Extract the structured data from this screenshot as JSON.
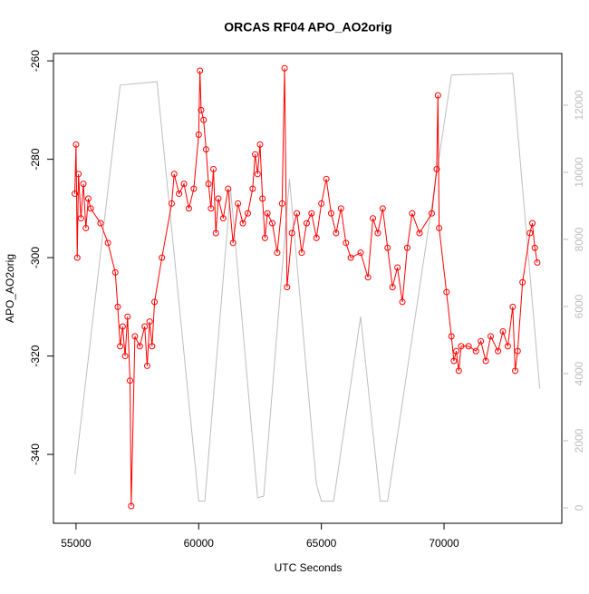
{
  "chart_data": {
    "type": "line",
    "title": "ORCAS RF04 APO_AO2orig",
    "xlabel": "UTC Seconds",
    "ylabel": "APO_AO2orig",
    "xlim": [
      54080,
      74800
    ],
    "xticks": [
      55000,
      60000,
      65000,
      70000
    ],
    "ylim": [
      -354,
      -258.5
    ],
    "yticks": [
      -340,
      -320,
      -300,
      -280,
      -260
    ],
    "y2lim": [
      -460,
      13540
    ],
    "y2ticks": [
      0,
      2000,
      4000,
      6000,
      8000,
      10000,
      12000
    ],
    "series": [
      {
        "color": "#bebebe",
        "axis": "y2",
        "x": [
          54950,
          56800,
          58300,
          60000,
          60250,
          61300,
          62400,
          62650,
          63700,
          64800,
          65000,
          65500,
          66600,
          67400,
          67700,
          70300,
          72800,
          73900
        ],
        "values": [
          1000,
          12600,
          12700,
          200,
          200,
          9500,
          300,
          350,
          9800,
          700,
          200,
          200,
          5700,
          200,
          200,
          12900,
          12950,
          3550
        ]
      },
      {
        "color": "#ff0000",
        "markers": true,
        "x": [
          54950,
          55000,
          55050,
          55100,
          55200,
          55300,
          55400,
          55500,
          55600,
          56000,
          56300,
          56600,
          56700,
          56800,
          56900,
          57000,
          57100,
          57200,
          57250,
          57400,
          57600,
          57800,
          57900,
          58000,
          58100,
          58200,
          58500,
          58900,
          59000,
          59200,
          59400,
          59600,
          59800,
          60000,
          60050,
          60100,
          60200,
          60300,
          60400,
          60500,
          60600,
          60700,
          60800,
          61000,
          61200,
          61400,
          61600,
          61800,
          62000,
          62200,
          62300,
          62400,
          62500,
          62600,
          62700,
          62800,
          63000,
          63200,
          63400,
          63500,
          63600,
          63800,
          64000,
          64200,
          64400,
          64600,
          64800,
          65000,
          65200,
          65400,
          65600,
          65800,
          66000,
          66200,
          66600,
          66900,
          67100,
          67300,
          67500,
          67700,
          67900,
          68100,
          68300,
          68500,
          68700,
          69000,
          69500,
          69700,
          69750,
          69800,
          70100,
          70300,
          70400,
          70500,
          70600,
          70700,
          71000,
          71300,
          71500,
          71700,
          71900,
          72200,
          72400,
          72600,
          72800,
          72900,
          73000,
          73200,
          73500,
          73600,
          73700,
          73800
        ],
        "values": [
          -287,
          -277,
          -300,
          -283,
          -292,
          -285,
          -294,
          -288,
          -290,
          -293,
          -297,
          -303,
          -310,
          -318,
          -314,
          -320,
          -312,
          -325,
          -350.5,
          -316,
          -318,
          -314,
          -322,
          -313,
          -318,
          -309,
          -300,
          -289,
          -283,
          -287,
          -285,
          -290,
          -286,
          -275,
          -262,
          -270,
          -272,
          -278,
          -285,
          -290,
          -282,
          -295,
          -288,
          -292,
          -286,
          -297,
          -289,
          -293,
          -291,
          -286,
          -279,
          -283,
          -277,
          -288,
          -296,
          -291,
          -293,
          -299,
          -289,
          -261.5,
          -306,
          -295,
          -291,
          -299,
          -293,
          -291,
          -296,
          -289,
          -284,
          -291,
          -295,
          -290,
          -297,
          -300,
          -299,
          -304,
          -292,
          -295,
          -290,
          -298,
          -306,
          -302,
          -309,
          -298,
          -291,
          -295,
          -291,
          -282,
          -267,
          -294,
          -307,
          -316,
          -321,
          -319,
          -323,
          -318,
          -318,
          -319,
          -317,
          -321,
          -316,
          -319,
          -315,
          -318,
          -310,
          -323,
          -319,
          -305,
          -295,
          -293,
          -298,
          -301
        ]
      }
    ]
  }
}
